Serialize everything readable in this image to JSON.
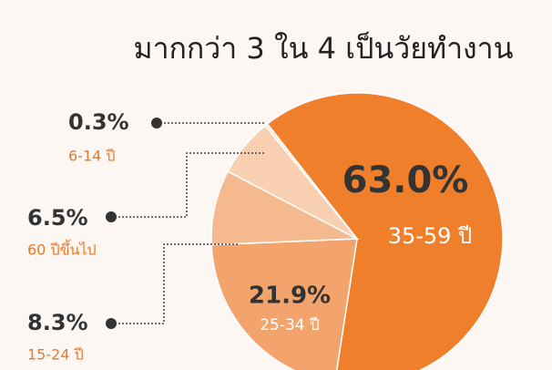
{
  "chart_data": {
    "type": "pie",
    "title": "มากกว่า 3 ใน 4 เป็นวัยทำงาน",
    "categories": [
      "35-59 ปี",
      "25-34 ปี",
      "15-24 ปี",
      "60 ปีขึ้นไป",
      "6-14 ปี"
    ],
    "values": [
      63.0,
      21.9,
      8.3,
      6.5,
      0.3
    ],
    "value_labels": [
      "63.0%",
      "21.9%",
      "8.3%",
      "6.5%",
      "0.3%"
    ],
    "colors": [
      "#f07f2c",
      "#f3a46c",
      "#f5b98f",
      "#f8cfb0",
      "#fbe3d0"
    ]
  }
}
